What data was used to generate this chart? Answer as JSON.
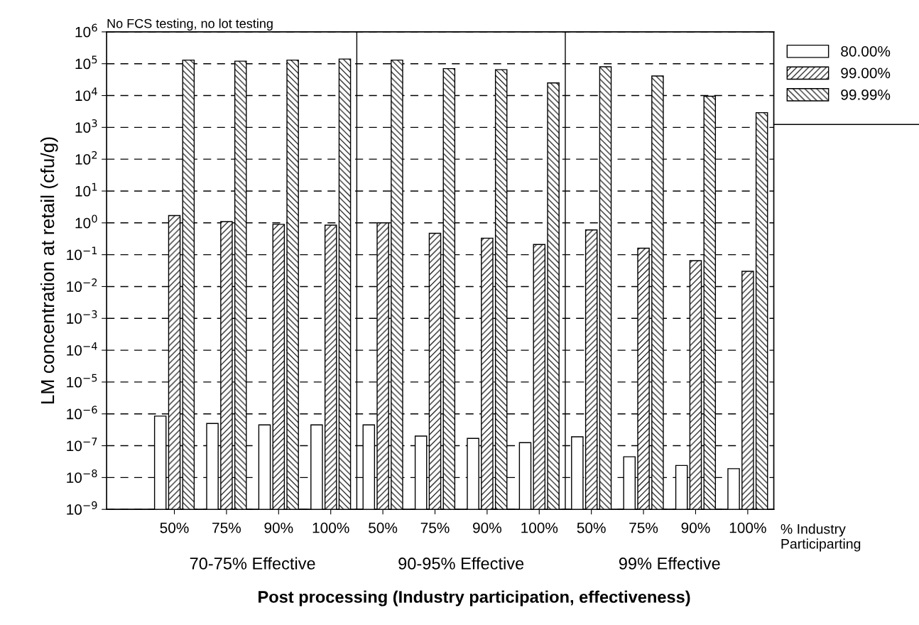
{
  "chart_data": {
    "type": "bar",
    "title": "No FCS testing, no lot testing",
    "xlabel": "Post processing (Industry participation, effectiveness)",
    "ylabel": "LM concentration at retail (cfu/g)",
    "categories": [
      "50%",
      "75%",
      "90%",
      "100%",
      "50%",
      "75%",
      "90%",
      "100%",
      "50%",
      "75%",
      "90%",
      "100%"
    ],
    "series": [
      {
        "name": "80.00%",
        "color": "#ffffff",
        "values": [
          8.5e-07,
          5e-07,
          4.5e-07,
          4.5e-07,
          4.5e-07,
          2e-07,
          1.7e-07,
          1.25e-07,
          1.9e-07,
          4.5e-08,
          2.4e-08,
          1.9e-08
        ]
      },
      {
        "name": "99.00%",
        "color": "#000000",
        "values": [
          1.7,
          1.1,
          0.9,
          0.85,
          1.0,
          0.47,
          0.33,
          0.21,
          0.6,
          0.16,
          0.065,
          0.03
        ]
      },
      {
        "name": "99.99%",
        "color": "#000000",
        "values": [
          130000,
          120000,
          130000,
          140000,
          130000,
          70000,
          65000,
          25000,
          80000,
          41000,
          9500,
          2900
        ]
      }
    ],
    "log": "y",
    "ylim": [
      1e-09,
      1000000.0
    ],
    "yticks": [
      {
        "value": 1e-09,
        "label": "10$^{−9}$"
      },
      {
        "value": 1e-08,
        "label": "10$^{−8}$"
      },
      {
        "value": 1e-07,
        "label": "10$^{−7}$"
      },
      {
        "value": 1e-06,
        "label": "10$^{−6}$"
      },
      {
        "value": 1e-05,
        "label": "10$^{−5}$"
      },
      {
        "value": 0.0001,
        "label": "10$^{−4}$"
      },
      {
        "value": 0.001,
        "label": "10$^{−3}$"
      },
      {
        "value": 0.01,
        "label": "10$^{−2}$"
      },
      {
        "value": 0.1,
        "label": "10$^{−1}$"
      },
      {
        "value": 1,
        "label": "10$^{0}$"
      },
      {
        "value": 10,
        "label": "10$^{1}$"
      },
      {
        "value": 100,
        "label": "10$^{2}$"
      },
      {
        "value": 1000,
        "label": "10$^{3}$"
      },
      {
        "value": 10000,
        "label": "10$^{4}$"
      },
      {
        "value": 100000,
        "label": "10$^{5}$"
      },
      {
        "value": 1000000,
        "label": "10$^{6}$"
      }
    ],
    "annotations": [
      "% Industry\nParticiparting",
      "70-75% Effective",
      "90-95% Effective",
      "99% Effective"
    ],
    "grid": "y",
    "legend": "top right"
  }
}
